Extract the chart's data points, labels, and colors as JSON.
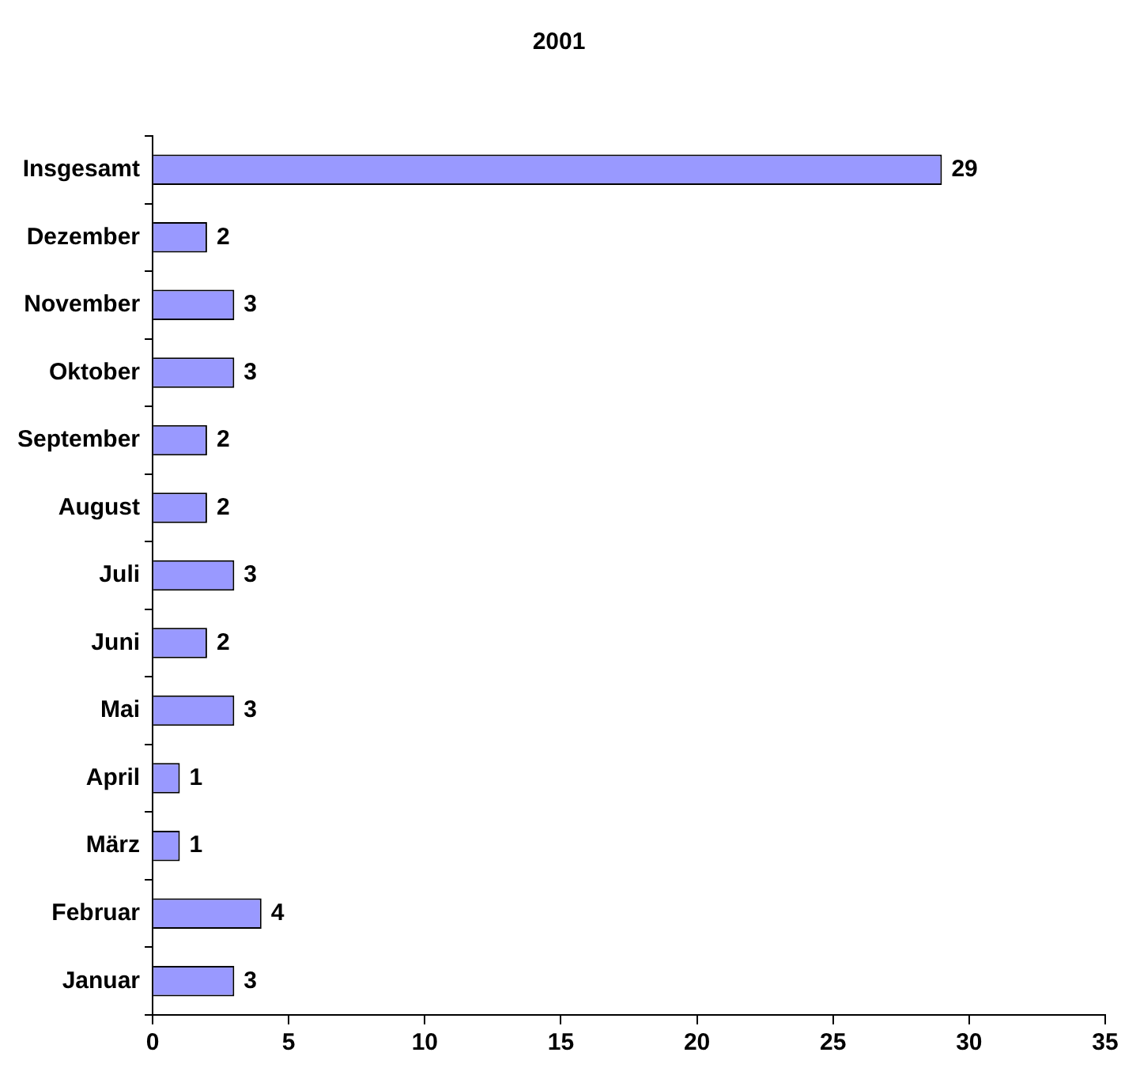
{
  "chart_data": {
    "type": "bar",
    "orientation": "horizontal",
    "title": "2001",
    "categories": [
      "Insgesamt",
      "Dezember",
      "November",
      "Oktober",
      "September",
      "August",
      "Juli",
      "Juni",
      "Mai",
      "April",
      "März",
      "Februar",
      "Januar"
    ],
    "values": [
      29,
      2,
      3,
      3,
      2,
      2,
      3,
      2,
      3,
      1,
      1,
      4,
      3
    ],
    "color": "#9999ff",
    "xlim": [
      0,
      35
    ],
    "xticks": [
      0,
      5,
      10,
      15,
      20,
      25,
      30,
      35
    ],
    "grid": false,
    "legend": false,
    "data_labels": true
  }
}
